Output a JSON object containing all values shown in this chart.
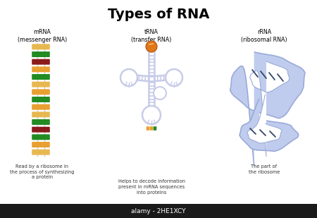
{
  "title": "Types of RNA",
  "title_fontsize": 14,
  "bg_color": "#ffffff",
  "mrna_label": "mRNA\n(messenger RNA)",
  "mrna_caption": "Read by a ribosome in\nthe process of synthesizing\na protein",
  "trna_label": "tRNA\n(transfer RNA)",
  "trna_caption": "Helps to decode information\npresent in mRNA sequences\ninto proteins",
  "rrna_label": "rRNA\n(ribosomal RNA)",
  "rrna_caption": "The part of\nthe ribosome",
  "watermark": "alamy - 2HE1XCY",
  "mrna_colors": [
    "#E8B850",
    "#228B22",
    "#8B1A1A",
    "#E8A030",
    "#228B22",
    "#E8B850",
    "#E8A030",
    "#228B22",
    "#E8A030",
    "#E8B850",
    "#228B22",
    "#8B1A1A",
    "#228B22",
    "#E8A030",
    "#E8B850"
  ],
  "trna_color": "#c8cce8",
  "rrna_color": "#c0ccee",
  "rrna_outline": "#9aaad8",
  "orange_ball": "#E07818",
  "anticodon_colors": [
    "#E8A030",
    "#E8A030",
    "#228B22"
  ]
}
